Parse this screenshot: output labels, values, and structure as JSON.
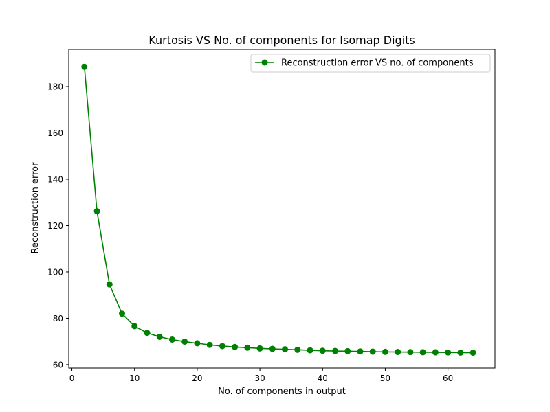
{
  "chart_data": {
    "type": "line",
    "title": "Kurtosis VS No. of components for Isomap Digits",
    "xlabel": "No. of components in output",
    "ylabel": "Reconstruction error",
    "xlim": [
      -0.5,
      67.5
    ],
    "ylim": [
      58.5,
      196
    ],
    "xticks": [
      0,
      10,
      20,
      30,
      40,
      50,
      60
    ],
    "yticks": [
      60,
      80,
      100,
      120,
      140,
      160,
      180
    ],
    "grid": false,
    "legend_position": "top-right",
    "series": [
      {
        "name": "Reconstruction error VS no. of components",
        "color": "#008000",
        "marker": "circle",
        "x": [
          2,
          4,
          6,
          8,
          10,
          12,
          14,
          16,
          18,
          20,
          22,
          24,
          26,
          28,
          30,
          32,
          34,
          36,
          38,
          40,
          42,
          44,
          46,
          48,
          50,
          52,
          54,
          56,
          58,
          60,
          62,
          64
        ],
        "y": [
          188.5,
          126.2,
          94.6,
          82.0,
          76.6,
          73.7,
          72.0,
          70.8,
          69.9,
          69.2,
          68.5,
          68.0,
          67.6,
          67.3,
          67.0,
          66.8,
          66.6,
          66.4,
          66.2,
          66.0,
          65.9,
          65.8,
          65.7,
          65.6,
          65.5,
          65.45,
          65.4,
          65.35,
          65.3,
          65.25,
          65.2,
          65.15
        ]
      }
    ]
  }
}
